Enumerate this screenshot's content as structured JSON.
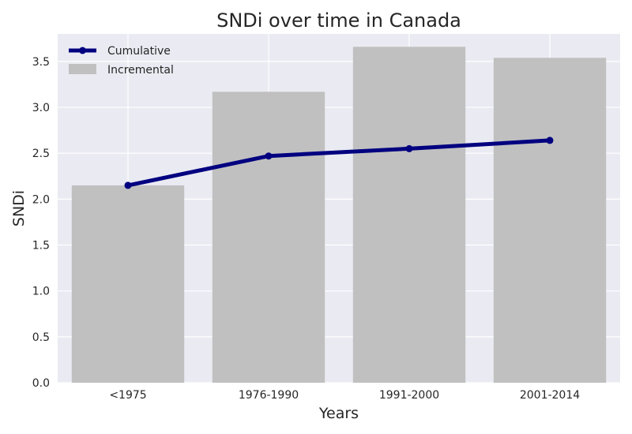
{
  "chart_data": {
    "type": "bar",
    "title": "SNDi over time in Canada",
    "xlabel": "Years",
    "ylabel": "SNDi",
    "categories": [
      "<1975",
      "1976-1990",
      "1991-2000",
      "2001-2014"
    ],
    "ylim": [
      0,
      3.8
    ],
    "yticks": [
      0.0,
      0.5,
      1.0,
      1.5,
      2.0,
      2.5,
      3.0,
      3.5
    ],
    "ytick_labels": [
      "0.0",
      "0.5",
      "1.0",
      "1.5",
      "2.0",
      "2.5",
      "3.0",
      "3.5"
    ],
    "grid": true,
    "legend_position": "top-left",
    "series": [
      {
        "name": "Cumulative",
        "kind": "line",
        "values": [
          2.15,
          2.47,
          2.55,
          2.64
        ],
        "color": "#000080"
      },
      {
        "name": "Incremental",
        "kind": "bar",
        "values": [
          2.15,
          3.17,
          3.66,
          3.54
        ],
        "color": "#c0c0c0"
      }
    ],
    "background_color": "#eaeaf2"
  }
}
